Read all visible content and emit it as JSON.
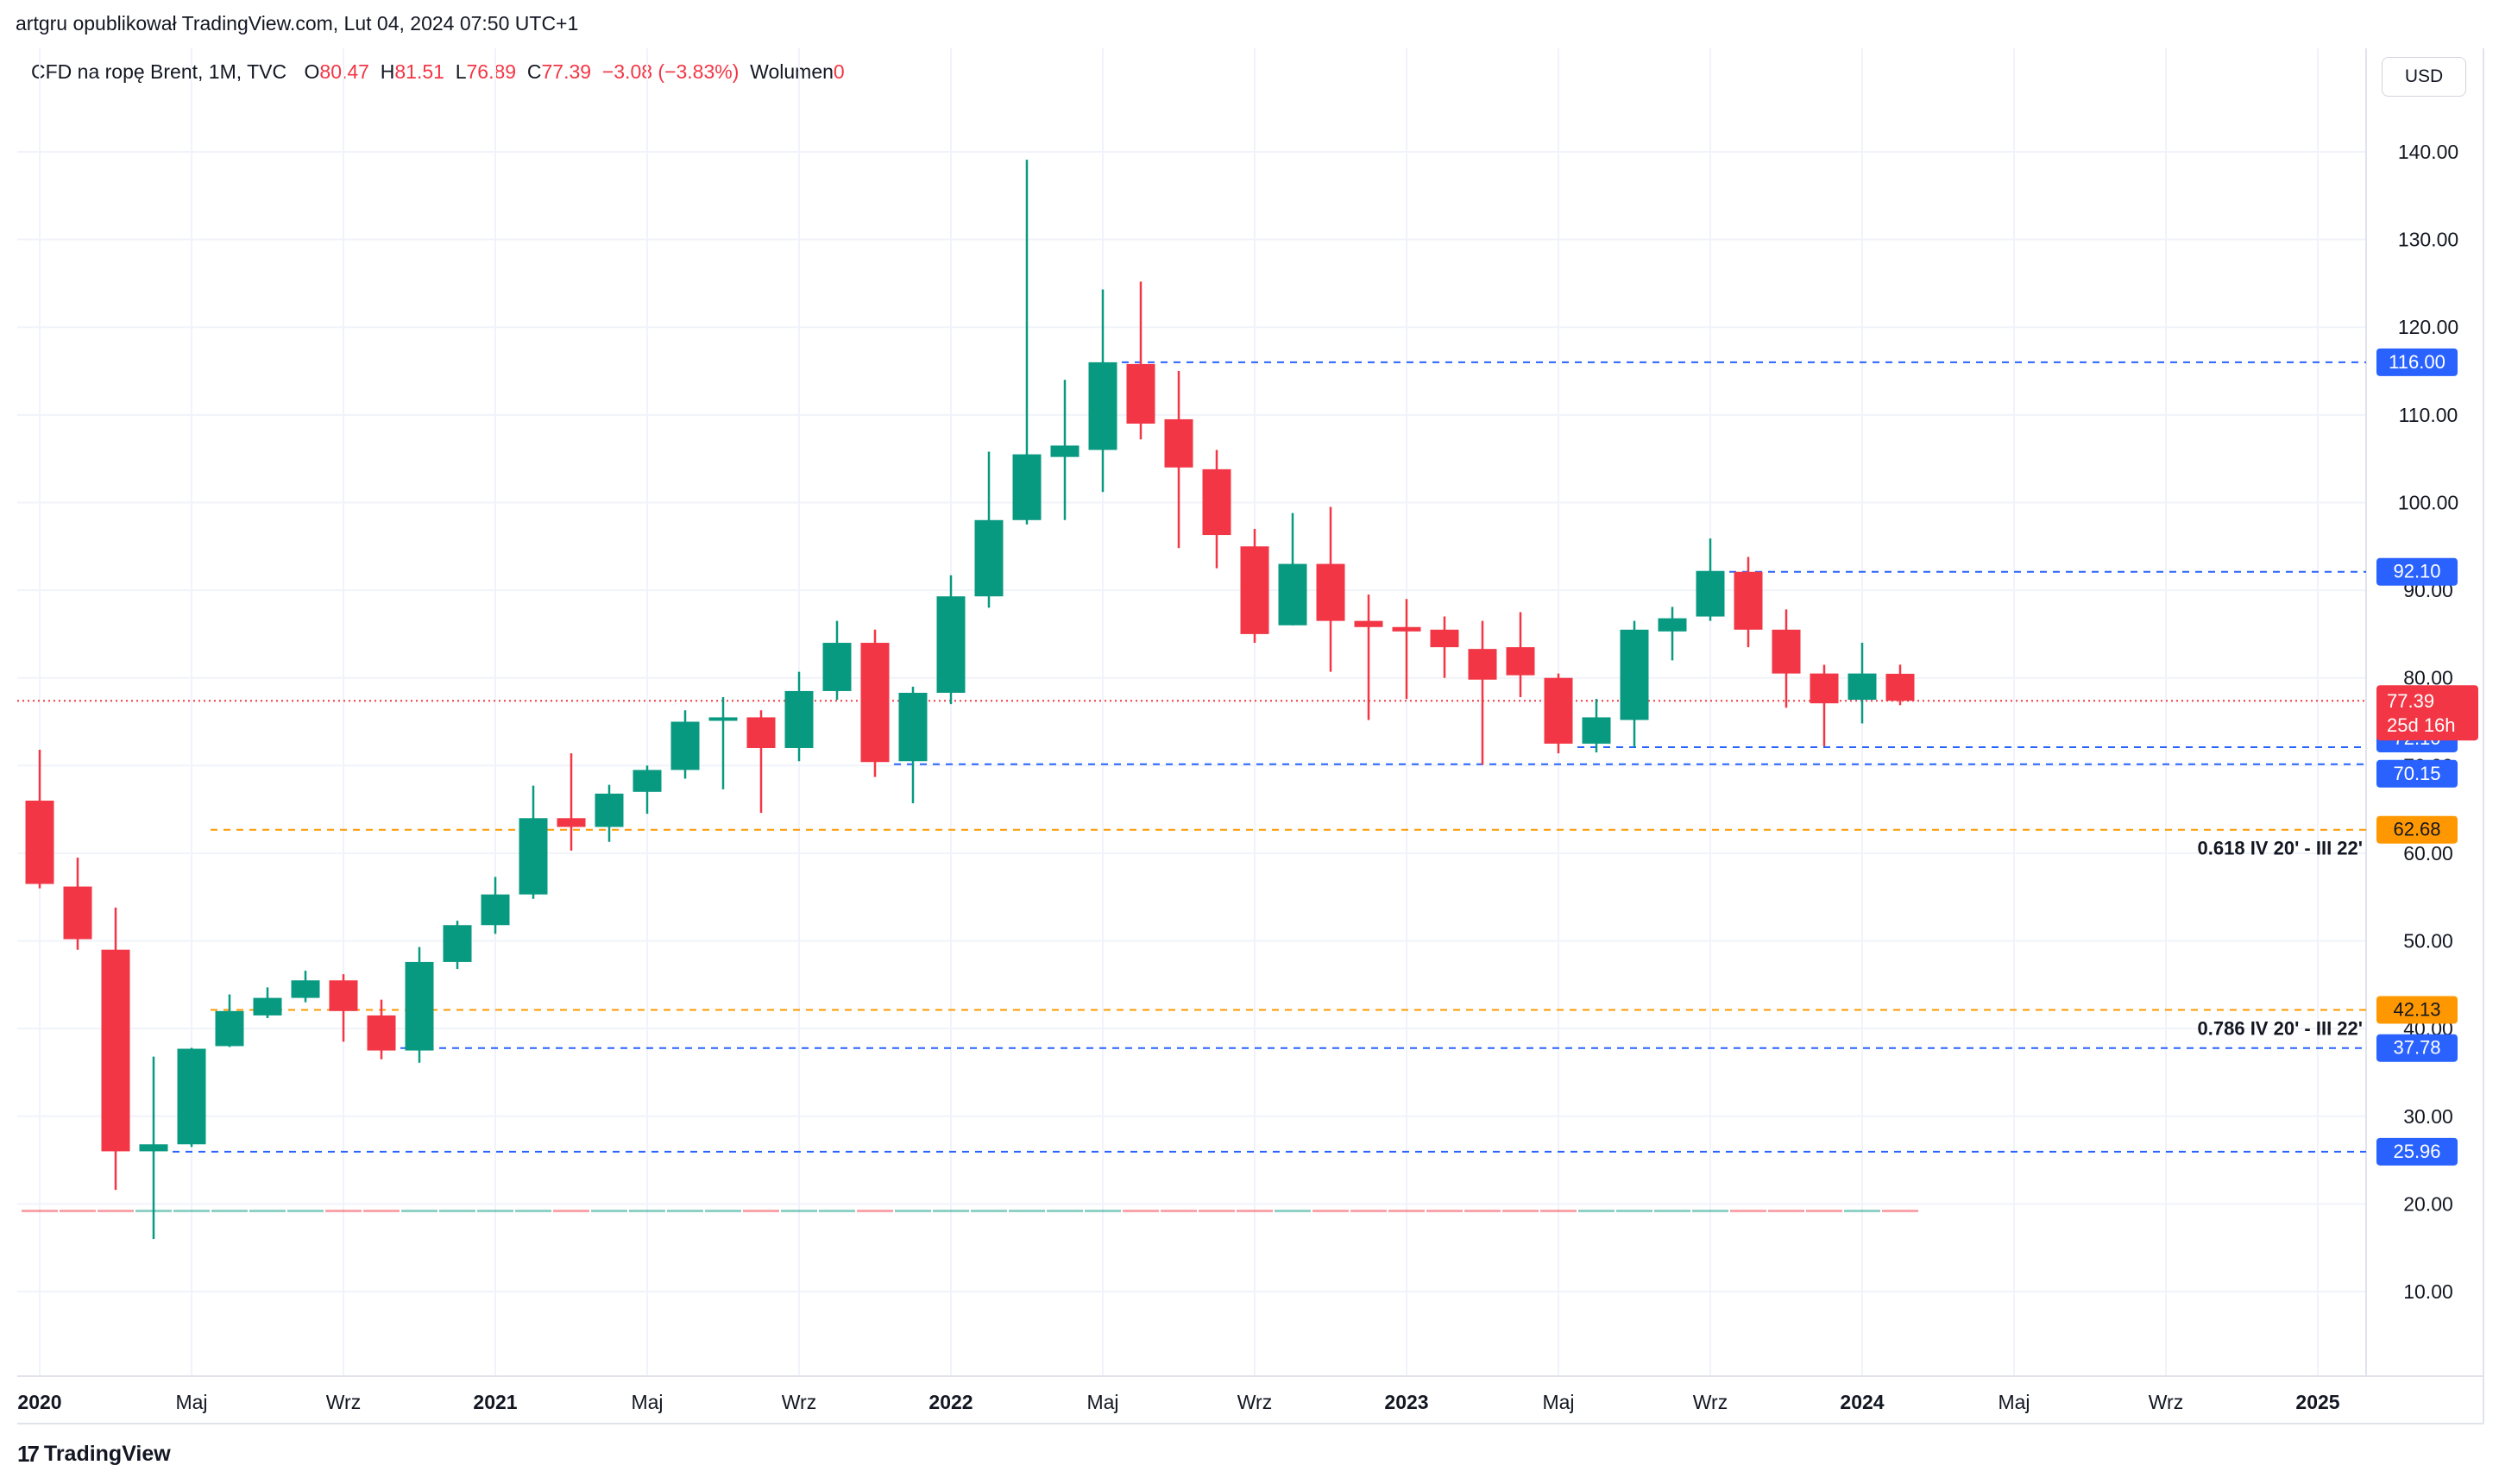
{
  "header": {
    "published_by": "artgru opublikował TradingView.com, Lut 04, 2024 07:50 UTC+1"
  },
  "legend": {
    "symbol": "CFD na ropę Brent, 1M, TVC",
    "o_label": "O",
    "o_value": "80.47",
    "h_label": "H",
    "h_value": "81.51",
    "l_label": "L",
    "l_value": "76.89",
    "c_label": "C",
    "c_value": "77.39",
    "change": "−3.08 (−3.83%)",
    "volume_label": "Wolumen",
    "volume_value": "0"
  },
  "currency_button": "USD",
  "brand": {
    "logo": "17",
    "name": "TradingView"
  },
  "colors": {
    "up": "#089981",
    "down": "#f23645",
    "blue": "#2962ff",
    "orange": "#ff9800",
    "grid": "#f0f3fa"
  },
  "chart_data": {
    "type": "candlestick",
    "timeframe": "1M",
    "y_range": [
      3,
      150
    ],
    "y_ticks": [
      "10.00",
      "20.00",
      "30.00",
      "40.00",
      "50.00",
      "60.00",
      "70.00",
      "80.00",
      "90.00",
      "100.00",
      "110.00",
      "120.00",
      "130.00",
      "140.00"
    ],
    "x_labels": [
      {
        "text": "2020",
        "month": 0,
        "bold": true
      },
      {
        "text": "Maj",
        "month": 4,
        "bold": false
      },
      {
        "text": "Wrz",
        "month": 8,
        "bold": false
      },
      {
        "text": "2021",
        "month": 12,
        "bold": true
      },
      {
        "text": "Maj",
        "month": 16,
        "bold": false
      },
      {
        "text": "Wrz",
        "month": 20,
        "bold": false
      },
      {
        "text": "2022",
        "month": 24,
        "bold": true
      },
      {
        "text": "Maj",
        "month": 28,
        "bold": false
      },
      {
        "text": "Wrz",
        "month": 32,
        "bold": false
      },
      {
        "text": "2023",
        "month": 36,
        "bold": true
      },
      {
        "text": "Maj",
        "month": 40,
        "bold": false
      },
      {
        "text": "Wrz",
        "month": 44,
        "bold": false
      },
      {
        "text": "2024",
        "month": 48,
        "bold": true
      },
      {
        "text": "Maj",
        "month": 52,
        "bold": false
      },
      {
        "text": "Wrz",
        "month": 56,
        "bold": false
      },
      {
        "text": "2025",
        "month": 60,
        "bold": true
      }
    ],
    "candles": [
      {
        "date": "2020-01",
        "o": 66.0,
        "h": 71.8,
        "l": 56.0,
        "c": 56.5
      },
      {
        "date": "2020-02",
        "o": 56.2,
        "h": 59.5,
        "l": 49.0,
        "c": 50.2
      },
      {
        "date": "2020-03",
        "o": 49.0,
        "h": 53.8,
        "l": 21.6,
        "c": 26.0
      },
      {
        "date": "2020-04",
        "o": 26.0,
        "h": 36.8,
        "l": 16.0,
        "c": 26.8
      },
      {
        "date": "2020-05",
        "o": 26.8,
        "h": 37.8,
        "l": 26.5,
        "c": 37.7
      },
      {
        "date": "2020-06",
        "o": 38.0,
        "h": 43.9,
        "l": 37.9,
        "c": 42.0
      },
      {
        "date": "2020-07",
        "o": 41.5,
        "h": 44.7,
        "l": 41.2,
        "c": 43.5
      },
      {
        "date": "2020-08",
        "o": 43.5,
        "h": 46.6,
        "l": 43.0,
        "c": 45.5
      },
      {
        "date": "2020-09",
        "o": 45.5,
        "h": 46.2,
        "l": 38.5,
        "c": 42.0
      },
      {
        "date": "2020-10",
        "o": 41.5,
        "h": 43.3,
        "l": 36.5,
        "c": 37.5
      },
      {
        "date": "2020-11",
        "o": 37.5,
        "h": 49.3,
        "l": 36.1,
        "c": 47.6
      },
      {
        "date": "2020-12",
        "o": 47.6,
        "h": 52.3,
        "l": 46.8,
        "c": 51.8
      },
      {
        "date": "2021-01",
        "o": 51.8,
        "h": 57.3,
        "l": 50.8,
        "c": 55.3
      },
      {
        "date": "2021-02",
        "o": 55.3,
        "h": 67.7,
        "l": 54.8,
        "c": 64.0
      },
      {
        "date": "2021-03",
        "o": 64.0,
        "h": 71.4,
        "l": 60.3,
        "c": 63.0
      },
      {
        "date": "2021-04",
        "o": 63.0,
        "h": 67.8,
        "l": 61.3,
        "c": 66.8
      },
      {
        "date": "2021-05",
        "o": 67.0,
        "h": 70.0,
        "l": 64.5,
        "c": 69.5
      },
      {
        "date": "2021-06",
        "o": 69.5,
        "h": 76.3,
        "l": 68.5,
        "c": 75.0
      },
      {
        "date": "2021-07",
        "o": 75.2,
        "h": 77.8,
        "l": 67.3,
        "c": 75.5
      },
      {
        "date": "2021-08",
        "o": 75.5,
        "h": 76.3,
        "l": 64.6,
        "c": 72.0
      },
      {
        "date": "2021-09",
        "o": 72.0,
        "h": 80.7,
        "l": 70.5,
        "c": 78.5
      },
      {
        "date": "2021-10",
        "o": 78.5,
        "h": 86.5,
        "l": 77.5,
        "c": 84.0
      },
      {
        "date": "2021-11",
        "o": 84.0,
        "h": 85.5,
        "l": 68.7,
        "c": 70.4
      },
      {
        "date": "2021-12",
        "o": 70.5,
        "h": 79.0,
        "l": 65.7,
        "c": 78.3
      },
      {
        "date": "2022-01",
        "o": 78.3,
        "h": 91.7,
        "l": 77.0,
        "c": 89.3
      },
      {
        "date": "2022-02",
        "o": 89.3,
        "h": 105.8,
        "l": 88.0,
        "c": 98.0
      },
      {
        "date": "2022-03",
        "o": 98.0,
        "h": 139.1,
        "l": 97.5,
        "c": 105.5
      },
      {
        "date": "2022-04",
        "o": 105.2,
        "h": 114.0,
        "l": 98.0,
        "c": 106.5
      },
      {
        "date": "2022-05",
        "o": 106.0,
        "h": 124.3,
        "l": 101.2,
        "c": 116.0
      },
      {
        "date": "2022-06",
        "o": 115.8,
        "h": 125.2,
        "l": 107.2,
        "c": 109.0
      },
      {
        "date": "2022-07",
        "o": 109.5,
        "h": 115.0,
        "l": 94.8,
        "c": 104.0
      },
      {
        "date": "2022-08",
        "o": 103.8,
        "h": 106.0,
        "l": 92.5,
        "c": 96.3
      },
      {
        "date": "2022-09",
        "o": 95.0,
        "h": 97.0,
        "l": 84.0,
        "c": 85.0
      },
      {
        "date": "2022-10",
        "o": 86.0,
        "h": 98.8,
        "l": 86.0,
        "c": 93.0
      },
      {
        "date": "2022-11",
        "o": 93.0,
        "h": 99.5,
        "l": 80.7,
        "c": 86.5
      },
      {
        "date": "2022-12",
        "o": 86.5,
        "h": 89.5,
        "l": 75.2,
        "c": 85.8
      },
      {
        "date": "2023-01",
        "o": 85.8,
        "h": 89.0,
        "l": 77.6,
        "c": 85.3
      },
      {
        "date": "2023-02",
        "o": 85.5,
        "h": 87.0,
        "l": 80.0,
        "c": 83.5
      },
      {
        "date": "2023-03",
        "o": 83.3,
        "h": 86.5,
        "l": 70.1,
        "c": 79.8
      },
      {
        "date": "2023-04",
        "o": 83.5,
        "h": 87.5,
        "l": 77.8,
        "c": 80.3
      },
      {
        "date": "2023-05",
        "o": 80.0,
        "h": 80.5,
        "l": 71.4,
        "c": 72.5
      },
      {
        "date": "2023-06",
        "o": 72.5,
        "h": 77.6,
        "l": 71.5,
        "c": 75.5
      },
      {
        "date": "2023-07",
        "o": 75.2,
        "h": 86.5,
        "l": 72.1,
        "c": 85.5
      },
      {
        "date": "2023-08",
        "o": 85.3,
        "h": 88.1,
        "l": 82.0,
        "c": 86.8
      },
      {
        "date": "2023-09",
        "o": 87.0,
        "h": 95.9,
        "l": 86.5,
        "c": 92.2
      },
      {
        "date": "2023-10",
        "o": 92.1,
        "h": 93.8,
        "l": 83.5,
        "c": 85.5
      },
      {
        "date": "2023-11",
        "o": 85.5,
        "h": 87.8,
        "l": 76.6,
        "c": 80.5
      },
      {
        "date": "2023-12",
        "o": 80.5,
        "h": 81.5,
        "l": 72.2,
        "c": 77.1
      },
      {
        "date": "2024-01",
        "o": 77.5,
        "h": 84.0,
        "l": 74.8,
        "c": 80.5
      },
      {
        "date": "2024-02",
        "o": 80.47,
        "h": 81.51,
        "l": 76.89,
        "c": 77.39
      }
    ],
    "volume_base_value": 19.2,
    "horizontal_levels": [
      {
        "value": 116.0,
        "label": "116.00",
        "color": "blue",
        "from_month": 29
      },
      {
        "value": 92.1,
        "label": "92.10",
        "color": "blue",
        "from_month": 45
      },
      {
        "value": 72.1,
        "label": "72.10",
        "color": "blue",
        "from_month": 41
      },
      {
        "value": 70.15,
        "label": "70.15",
        "color": "blue",
        "from_month": 23
      },
      {
        "value": 62.68,
        "label": "62.68",
        "color": "orange",
        "from_month": 5,
        "note": "0.618 IV 20' - III 22'"
      },
      {
        "value": 42.13,
        "label": "42.13",
        "color": "orange",
        "from_month": 5,
        "note": "0.786 IV 20' - III 22'"
      },
      {
        "value": 37.78,
        "label": "37.78",
        "color": "blue",
        "from_month": 10
      },
      {
        "value": 25.96,
        "label": "25.96",
        "color": "blue",
        "from_month": 4
      }
    ],
    "last_price": {
      "value": 77.39,
      "label": "77.39",
      "countdown": "25d 16h"
    }
  }
}
